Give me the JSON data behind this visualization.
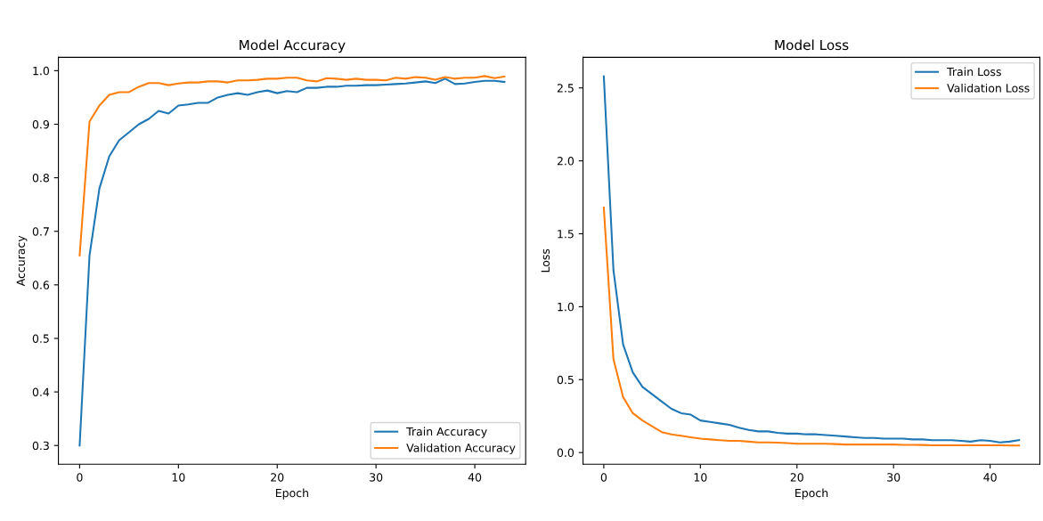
{
  "chart_data": [
    {
      "type": "line",
      "title": "Model Accuracy",
      "xlabel": "Epoch",
      "ylabel": "Accuracy",
      "x": [
        0,
        1,
        2,
        3,
        4,
        5,
        6,
        7,
        8,
        9,
        10,
        11,
        12,
        13,
        14,
        15,
        16,
        17,
        18,
        19,
        20,
        21,
        22,
        23,
        24,
        25,
        26,
        27,
        28,
        29,
        30,
        31,
        32,
        33,
        34,
        35,
        36,
        37,
        38,
        39,
        40,
        41,
        42,
        43
      ],
      "series": [
        {
          "name": "Train Accuracy",
          "color": "#1f77b4",
          "values": [
            0.3,
            0.655,
            0.78,
            0.84,
            0.87,
            0.885,
            0.9,
            0.91,
            0.925,
            0.92,
            0.935,
            0.937,
            0.94,
            0.94,
            0.95,
            0.955,
            0.958,
            0.955,
            0.96,
            0.963,
            0.958,
            0.962,
            0.96,
            0.968,
            0.968,
            0.97,
            0.97,
            0.972,
            0.972,
            0.973,
            0.973,
            0.974,
            0.975,
            0.976,
            0.978,
            0.98,
            0.977,
            0.985,
            0.975,
            0.976,
            0.979,
            0.981,
            0.981,
            0.979
          ]
        },
        {
          "name": "Validation Accuracy",
          "color": "#ff7f0e",
          "values": [
            0.655,
            0.905,
            0.935,
            0.955,
            0.96,
            0.96,
            0.97,
            0.977,
            0.977,
            0.973,
            0.976,
            0.978,
            0.978,
            0.98,
            0.98,
            0.978,
            0.982,
            0.982,
            0.983,
            0.985,
            0.985,
            0.987,
            0.987,
            0.982,
            0.98,
            0.986,
            0.985,
            0.983,
            0.985,
            0.983,
            0.983,
            0.982,
            0.987,
            0.985,
            0.988,
            0.987,
            0.983,
            0.988,
            0.985,
            0.987,
            0.987,
            0.99,
            0.986,
            0.989
          ]
        }
      ],
      "xlim": [
        -2.15,
        45.15
      ],
      "xticks": [
        0,
        10,
        20,
        30,
        40
      ],
      "ylim": [
        0.265,
        1.025
      ],
      "yticks": [
        0.3,
        0.4,
        0.5,
        0.6,
        0.7,
        0.8,
        0.9,
        {
          "value": 1,
          "label": "1.0"
        }
      ],
      "legend": "lower right",
      "grid": false
    },
    {
      "type": "line",
      "title": "Model Loss",
      "xlabel": "Epoch",
      "ylabel": "Loss",
      "x": [
        0,
        1,
        2,
        3,
        4,
        5,
        6,
        7,
        8,
        9,
        10,
        11,
        12,
        13,
        14,
        15,
        16,
        17,
        18,
        19,
        20,
        21,
        22,
        23,
        24,
        25,
        26,
        27,
        28,
        29,
        30,
        31,
        32,
        33,
        34,
        35,
        36,
        37,
        38,
        39,
        40,
        41,
        42,
        43
      ],
      "series": [
        {
          "name": "Train Loss",
          "color": "#1f77b4",
          "values": [
            2.58,
            1.25,
            0.74,
            0.55,
            0.45,
            0.4,
            0.35,
            0.3,
            0.27,
            0.26,
            0.22,
            0.21,
            0.2,
            0.19,
            0.17,
            0.155,
            0.145,
            0.145,
            0.135,
            0.13,
            0.13,
            0.125,
            0.125,
            0.12,
            0.115,
            0.11,
            0.105,
            0.1,
            0.1,
            0.095,
            0.095,
            0.095,
            0.09,
            0.09,
            0.085,
            0.085,
            0.085,
            0.08,
            0.075,
            0.085,
            0.08,
            0.07,
            0.075,
            0.085
          ]
        },
        {
          "name": "Validation Loss",
          "color": "#ff7f0e",
          "values": [
            1.68,
            0.64,
            0.38,
            0.27,
            0.22,
            0.18,
            0.14,
            0.125,
            0.115,
            0.105,
            0.095,
            0.09,
            0.085,
            0.08,
            0.08,
            0.075,
            0.07,
            0.07,
            0.068,
            0.065,
            0.06,
            0.06,
            0.06,
            0.06,
            0.058,
            0.055,
            0.055,
            0.055,
            0.055,
            0.055,
            0.055,
            0.053,
            0.053,
            0.052,
            0.05,
            0.05,
            0.05,
            0.05,
            0.05,
            0.05,
            0.05,
            0.05,
            0.048,
            0.048
          ]
        }
      ],
      "xlim": [
        -2.15,
        45.15
      ],
      "xticks": [
        0,
        10,
        20,
        30,
        40
      ],
      "ylim": [
        -0.08,
        2.71
      ],
      "yticks": [
        {
          "value": 0,
          "label": "0.0"
        },
        0.5,
        {
          "value": 1,
          "label": "1.0"
        },
        1.5,
        {
          "value": 2,
          "label": "2.0"
        },
        2.5
      ],
      "legend": "upper right",
      "grid": false
    }
  ]
}
